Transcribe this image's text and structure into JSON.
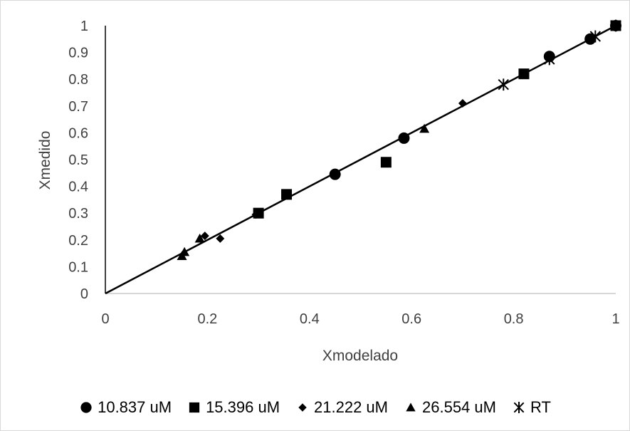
{
  "chart_data": {
    "type": "scatter",
    "title": "",
    "xlabel": "Xmodelado",
    "ylabel": "Xmedido",
    "xlim": [
      0,
      1
    ],
    "ylim": [
      0,
      1
    ],
    "xticks": [
      "0",
      "0.2",
      "0.4",
      "0.6",
      "0.8",
      "1"
    ],
    "yticks": [
      "0",
      "0.1",
      "0.2",
      "0.3",
      "0.4",
      "0.5",
      "0.6",
      "0.7",
      "0.8",
      "0.9",
      "1"
    ],
    "grid": false,
    "legend_position": "bottom",
    "reference_line": {
      "x": [
        0,
        1
      ],
      "y": [
        0,
        1
      ],
      "color": "#000000"
    },
    "series": [
      {
        "name": "10.837 uM",
        "marker": "circle",
        "color": "#000000",
        "points": [
          [
            0.45,
            0.445
          ],
          [
            0.585,
            0.58
          ],
          [
            0.87,
            0.885
          ],
          [
            0.95,
            0.95
          ],
          [
            1.0,
            1.0
          ]
        ]
      },
      {
        "name": "15.396 uM",
        "marker": "square",
        "color": "#000000",
        "points": [
          [
            0.3,
            0.3
          ],
          [
            0.355,
            0.37
          ],
          [
            0.55,
            0.49
          ],
          [
            0.82,
            0.82
          ],
          [
            1.0,
            1.0
          ]
        ]
      },
      {
        "name": "21.222 uM",
        "marker": "diamond",
        "color": "#000000",
        "points": [
          [
            0.195,
            0.215
          ],
          [
            0.225,
            0.205
          ],
          [
            0.295,
            0.295
          ],
          [
            0.7,
            0.71
          ]
        ]
      },
      {
        "name": "26.554 uM",
        "marker": "triangle",
        "color": "#000000",
        "points": [
          [
            0.15,
            0.14
          ],
          [
            0.155,
            0.155
          ],
          [
            0.185,
            0.205
          ],
          [
            0.625,
            0.615
          ]
        ]
      },
      {
        "name": "RT",
        "marker": "star",
        "color": "#000000",
        "points": [
          [
            0.78,
            0.78
          ],
          [
            0.87,
            0.875
          ],
          [
            0.96,
            0.96
          ],
          [
            1.0,
            1.0
          ]
        ]
      }
    ]
  }
}
